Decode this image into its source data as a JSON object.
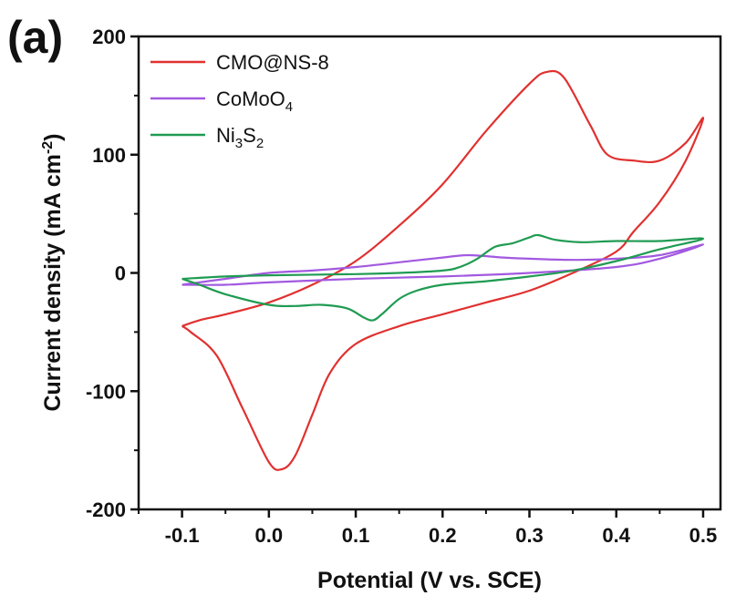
{
  "panel_label": "(a)",
  "chart_data": {
    "type": "line",
    "title": "",
    "xlabel": "Potential (V vs. SCE)",
    "ylabel_main": "Current density (mA cm",
    "ylabel_sup": "-2",
    "ylabel_close": ")",
    "xlim": [
      -0.15,
      0.52
    ],
    "ylim": [
      -200,
      200
    ],
    "x_ticks": [
      -0.1,
      0.0,
      0.1,
      0.2,
      0.3,
      0.4,
      0.5
    ],
    "x_tick_labels": [
      "-0.1",
      "0.0",
      "0.1",
      "0.2",
      "0.3",
      "0.4",
      "0.5"
    ],
    "y_ticks": [
      -200,
      -100,
      0,
      100,
      200
    ],
    "y_tick_labels": [
      "-200",
      "-100",
      "0",
      "100",
      "200"
    ],
    "grid": false,
    "legend_position": "top-left",
    "series": [
      {
        "name": "CMO@NS-8",
        "legend_parts": [
          [
            "CMO@NS-8",
            ""
          ]
        ],
        "color": "#e0312f",
        "points": [
          [
            -0.1,
            -45
          ],
          [
            -0.08,
            -40
          ],
          [
            -0.05,
            -35
          ],
          [
            0.0,
            -25
          ],
          [
            0.05,
            -10
          ],
          [
            0.1,
            10
          ],
          [
            0.15,
            40
          ],
          [
            0.2,
            75
          ],
          [
            0.25,
            120
          ],
          [
            0.3,
            160
          ],
          [
            0.32,
            170
          ],
          [
            0.34,
            165
          ],
          [
            0.37,
            125
          ],
          [
            0.39,
            100
          ],
          [
            0.42,
            95
          ],
          [
            0.45,
            95
          ],
          [
            0.48,
            110
          ],
          [
            0.5,
            131
          ],
          [
            0.48,
            95
          ],
          [
            0.45,
            60
          ],
          [
            0.42,
            35
          ],
          [
            0.4,
            18
          ],
          [
            0.35,
            0
          ],
          [
            0.3,
            -15
          ],
          [
            0.25,
            -25
          ],
          [
            0.2,
            -35
          ],
          [
            0.15,
            -45
          ],
          [
            0.1,
            -60
          ],
          [
            0.07,
            -85
          ],
          [
            0.05,
            -120
          ],
          [
            0.03,
            -155
          ],
          [
            0.015,
            -166
          ],
          [
            0.0,
            -160
          ],
          [
            -0.03,
            -115
          ],
          [
            -0.06,
            -70
          ],
          [
            -0.09,
            -50
          ],
          [
            -0.1,
            -45
          ]
        ]
      },
      {
        "name": "CoMoO4",
        "legend_parts": [
          [
            "CoMoO",
            ""
          ],
          [
            "4",
            "sub"
          ]
        ],
        "color": "#a259e0",
        "points": [
          [
            -0.1,
            -10
          ],
          [
            -0.05,
            -5
          ],
          [
            0.0,
            0
          ],
          [
            0.05,
            2
          ],
          [
            0.1,
            5
          ],
          [
            0.15,
            9
          ],
          [
            0.2,
            13
          ],
          [
            0.23,
            15
          ],
          [
            0.27,
            13
          ],
          [
            0.3,
            12
          ],
          [
            0.35,
            11
          ],
          [
            0.4,
            12
          ],
          [
            0.45,
            15
          ],
          [
            0.5,
            24
          ],
          [
            0.45,
            12
          ],
          [
            0.4,
            5
          ],
          [
            0.3,
            0
          ],
          [
            0.2,
            -3
          ],
          [
            0.1,
            -5
          ],
          [
            0.0,
            -8
          ],
          [
            -0.05,
            -10
          ],
          [
            -0.1,
            -10
          ]
        ]
      },
      {
        "name": "Ni3S2",
        "legend_parts": [
          [
            "Ni",
            ""
          ],
          [
            "3",
            "sub"
          ],
          [
            "S",
            ""
          ],
          [
            "2",
            "sub"
          ]
        ],
        "color": "#1f9b52",
        "points": [
          [
            -0.1,
            -5
          ],
          [
            -0.05,
            -3
          ],
          [
            0.0,
            -2
          ],
          [
            0.1,
            -1
          ],
          [
            0.15,
            0
          ],
          [
            0.2,
            2
          ],
          [
            0.22,
            5
          ],
          [
            0.24,
            12
          ],
          [
            0.26,
            22
          ],
          [
            0.28,
            25
          ],
          [
            0.3,
            30
          ],
          [
            0.31,
            32
          ],
          [
            0.33,
            28
          ],
          [
            0.36,
            26
          ],
          [
            0.4,
            27
          ],
          [
            0.45,
            27
          ],
          [
            0.5,
            29
          ],
          [
            0.45,
            20
          ],
          [
            0.4,
            10
          ],
          [
            0.35,
            2
          ],
          [
            0.3,
            -3
          ],
          [
            0.25,
            -7
          ],
          [
            0.2,
            -10
          ],
          [
            0.17,
            -15
          ],
          [
            0.15,
            -22
          ],
          [
            0.13,
            -35
          ],
          [
            0.12,
            -40
          ],
          [
            0.11,
            -38
          ],
          [
            0.09,
            -30
          ],
          [
            0.06,
            -27
          ],
          [
            0.03,
            -28
          ],
          [
            0.0,
            -27
          ],
          [
            -0.05,
            -18
          ],
          [
            -0.08,
            -10
          ],
          [
            -0.1,
            -5
          ]
        ]
      }
    ]
  }
}
